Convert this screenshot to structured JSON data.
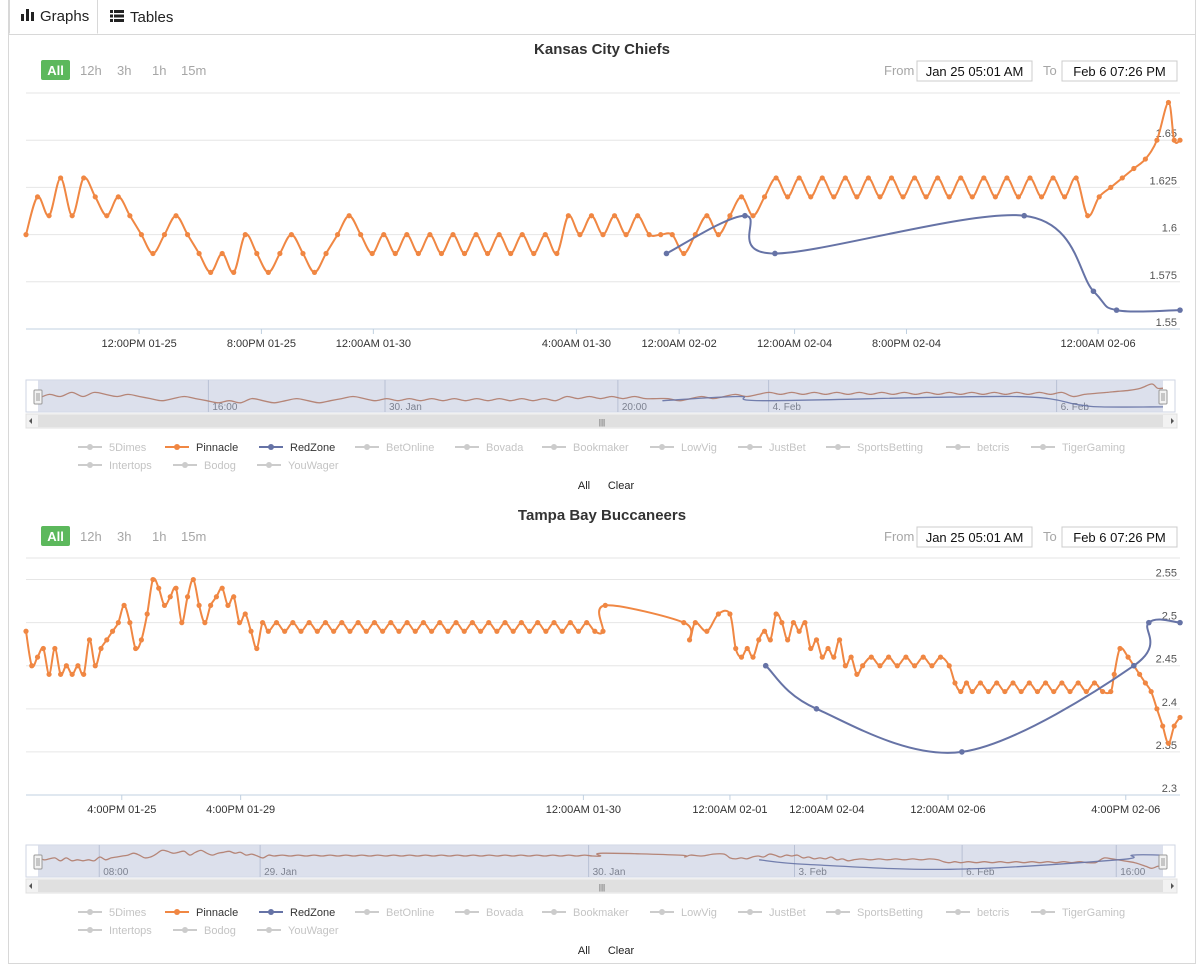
{
  "tabs": [
    {
      "label": "Graphs",
      "icon": "bar-chart-icon",
      "active": true
    },
    {
      "label": "Tables",
      "icon": "list-icon",
      "active": false
    }
  ],
  "colors": {
    "pinnacle": "#f08743",
    "redzone": "#6673a6",
    "inactive": "#cccccc",
    "accent": "#5cb85c",
    "navigator_bg": "#d6dbe9"
  },
  "range_buttons": [
    "All",
    "12h",
    "3h",
    "1h",
    "15m"
  ],
  "legend_items": [
    "5Dimes",
    "Pinnacle",
    "RedZone",
    "BetOnline",
    "Bovada",
    "Bookmaker",
    "LowVig",
    "JustBet",
    "SportsBetting",
    "betcris",
    "TigerGaming",
    "Intertops",
    "Bodog",
    "YouWager"
  ],
  "legend_active": [
    "Pinnacle",
    "RedZone"
  ],
  "legend_controls": {
    "all": "All",
    "clear": "Clear"
  },
  "chart_data": [
    {
      "type": "line",
      "title": "Kansas City Chiefs",
      "from_label": "From",
      "from_value": "Jan 25 05:01 AM",
      "to_label": "To",
      "to_value": "Feb 6 07:26 PM",
      "ylim": [
        1.55,
        1.675
      ],
      "yticks": [
        "1.55",
        "1.575",
        "1.6",
        "1.625",
        "1.65"
      ],
      "xlim": [
        0,
        100
      ],
      "xticks": [
        {
          "x": 9.8,
          "label": "12:00PM 01-25"
        },
        {
          "x": 20.4,
          "label": "8:00PM 01-25"
        },
        {
          "x": 30.1,
          "label": "12:00AM 01-30"
        },
        {
          "x": 47.7,
          "label": "4:00AM 01-30"
        },
        {
          "x": 56.6,
          "label": "12:00AM 02-02"
        },
        {
          "x": 66.6,
          "label": "12:00AM 02-04"
        },
        {
          "x": 76.3,
          "label": "8:00PM 02-04"
        },
        {
          "x": 92.9,
          "label": "12:00AM 02-06"
        }
      ],
      "navigator_labels": [
        {
          "x": 15.5,
          "label": "16:00"
        },
        {
          "x": 31.2,
          "label": "30. Jan"
        },
        {
          "x": 51.9,
          "label": "20:00"
        },
        {
          "x": 65.3,
          "label": "4. Feb"
        },
        {
          "x": 90.9,
          "label": "6. Feb"
        }
      ],
      "series": [
        {
          "name": "Pinnacle",
          "points": [
            [
              0,
              1.6
            ],
            [
              1,
              1.62
            ],
            [
              2,
              1.61
            ],
            [
              3,
              1.63
            ],
            [
              4,
              1.61
            ],
            [
              5,
              1.63
            ],
            [
              6,
              1.62
            ],
            [
              7,
              1.61
            ],
            [
              8,
              1.62
            ],
            [
              9,
              1.61
            ],
            [
              10,
              1.6
            ],
            [
              11,
              1.59
            ],
            [
              12,
              1.6
            ],
            [
              13,
              1.61
            ],
            [
              14,
              1.6
            ],
            [
              15,
              1.59
            ],
            [
              16,
              1.58
            ],
            [
              17,
              1.59
            ],
            [
              18,
              1.58
            ],
            [
              19,
              1.6
            ],
            [
              20,
              1.59
            ],
            [
              21,
              1.58
            ],
            [
              22,
              1.59
            ],
            [
              23,
              1.6
            ],
            [
              24,
              1.59
            ],
            [
              25,
              1.58
            ],
            [
              26,
              1.59
            ],
            [
              27,
              1.6
            ],
            [
              28,
              1.61
            ],
            [
              29,
              1.6
            ],
            [
              30,
              1.59
            ],
            [
              31,
              1.6
            ],
            [
              32,
              1.59
            ],
            [
              33,
              1.6
            ],
            [
              34,
              1.59
            ],
            [
              35,
              1.6
            ],
            [
              36,
              1.59
            ],
            [
              37,
              1.6
            ],
            [
              38,
              1.59
            ],
            [
              39,
              1.6
            ],
            [
              40,
              1.59
            ],
            [
              41,
              1.6
            ],
            [
              42,
              1.59
            ],
            [
              43,
              1.6
            ],
            [
              44,
              1.59
            ],
            [
              45,
              1.6
            ],
            [
              46,
              1.59
            ],
            [
              47,
              1.61
            ],
            [
              48,
              1.6
            ],
            [
              49,
              1.61
            ],
            [
              50,
              1.6
            ],
            [
              51,
              1.61
            ],
            [
              52,
              1.6
            ],
            [
              53,
              1.61
            ],
            [
              54,
              1.6
            ],
            [
              55,
              1.6
            ],
            [
              56,
              1.6
            ],
            [
              57,
              1.59
            ],
            [
              58,
              1.6
            ],
            [
              59,
              1.61
            ],
            [
              60,
              1.6
            ],
            [
              61,
              1.61
            ],
            [
              62,
              1.62
            ],
            [
              63,
              1.61
            ],
            [
              64,
              1.62
            ],
            [
              65,
              1.63
            ],
            [
              66,
              1.62
            ],
            [
              67,
              1.63
            ],
            [
              68,
              1.62
            ],
            [
              69,
              1.63
            ],
            [
              70,
              1.62
            ],
            [
              71,
              1.63
            ],
            [
              72,
              1.62
            ],
            [
              73,
              1.63
            ],
            [
              74,
              1.62
            ],
            [
              75,
              1.63
            ],
            [
              76,
              1.62
            ],
            [
              77,
              1.63
            ],
            [
              78,
              1.62
            ],
            [
              79,
              1.63
            ],
            [
              80,
              1.62
            ],
            [
              81,
              1.63
            ],
            [
              82,
              1.62
            ],
            [
              83,
              1.63
            ],
            [
              84,
              1.62
            ],
            [
              85,
              1.63
            ],
            [
              86,
              1.62
            ],
            [
              87,
              1.63
            ],
            [
              88,
              1.62
            ],
            [
              89,
              1.63
            ],
            [
              90,
              1.62
            ],
            [
              91,
              1.63
            ],
            [
              92,
              1.61
            ],
            [
              93,
              1.62
            ],
            [
              94,
              1.625
            ],
            [
              95,
              1.63
            ],
            [
              96,
              1.635
            ],
            [
              97,
              1.64
            ],
            [
              98,
              1.65
            ],
            [
              99,
              1.67
            ],
            [
              99.5,
              1.65
            ],
            [
              100,
              1.65
            ]
          ]
        },
        {
          "name": "RedZone",
          "points": [
            [
              55.5,
              1.59
            ],
            [
              62.3,
              1.61
            ],
            [
              64.9,
              1.59
            ],
            [
              86.5,
              1.61
            ],
            [
              92.5,
              1.57
            ],
            [
              94.5,
              1.56
            ],
            [
              100,
              1.56
            ]
          ]
        }
      ]
    },
    {
      "type": "line",
      "title": "Tampa Bay Buccaneers",
      "from_label": "From",
      "from_value": "Jan 25 05:01 AM",
      "to_label": "To",
      "to_value": "Feb 6 07:26 PM",
      "ylim": [
        2.3,
        2.575
      ],
      "yticks": [
        "2.3",
        "2.35",
        "2.4",
        "2.45",
        "2.5",
        "2.55"
      ],
      "xlim": [
        0,
        100
      ],
      "xticks": [
        {
          "x": 8.3,
          "label": "4:00PM 01-25"
        },
        {
          "x": 18.6,
          "label": "4:00PM 01-29"
        },
        {
          "x": 48.3,
          "label": "12:00AM 01-30"
        },
        {
          "x": 61.0,
          "label": "12:00AM 02-01"
        },
        {
          "x": 69.4,
          "label": "12:00AM 02-04"
        },
        {
          "x": 79.9,
          "label": "12:00AM 02-06"
        },
        {
          "x": 95.3,
          "label": "4:00PM 02-06"
        }
      ],
      "navigator_labels": [
        {
          "x": 5.8,
          "label": "08:00"
        },
        {
          "x": 20.1,
          "label": "29. Jan"
        },
        {
          "x": 49.3,
          "label": "30. Jan"
        },
        {
          "x": 67.6,
          "label": "3. Feb"
        },
        {
          "x": 82.5,
          "label": "6. Feb"
        },
        {
          "x": 96.2,
          "label": "16:00"
        }
      ],
      "series": [
        {
          "name": "Pinnacle",
          "points": [
            [
              0,
              2.49
            ],
            [
              0.5,
              2.45
            ],
            [
              1,
              2.46
            ],
            [
              1.5,
              2.47
            ],
            [
              2,
              2.44
            ],
            [
              2.5,
              2.47
            ],
            [
              3,
              2.44
            ],
            [
              3.5,
              2.45
            ],
            [
              4,
              2.44
            ],
            [
              4.5,
              2.45
            ],
            [
              5,
              2.44
            ],
            [
              5.5,
              2.48
            ],
            [
              6,
              2.45
            ],
            [
              6.5,
              2.47
            ],
            [
              7,
              2.48
            ],
            [
              7.5,
              2.49
            ],
            [
              8,
              2.5
            ],
            [
              8.5,
              2.52
            ],
            [
              9,
              2.5
            ],
            [
              9.5,
              2.47
            ],
            [
              10,
              2.48
            ],
            [
              10.5,
              2.51
            ],
            [
              11,
              2.55
            ],
            [
              11.5,
              2.54
            ],
            [
              12,
              2.52
            ],
            [
              12.5,
              2.53
            ],
            [
              13,
              2.54
            ],
            [
              13.5,
              2.5
            ],
            [
              14,
              2.53
            ],
            [
              14.5,
              2.55
            ],
            [
              15,
              2.52
            ],
            [
              15.5,
              2.5
            ],
            [
              16,
              2.52
            ],
            [
              16.5,
              2.53
            ],
            [
              17,
              2.54
            ],
            [
              17.5,
              2.52
            ],
            [
              18,
              2.53
            ],
            [
              18.5,
              2.5
            ],
            [
              19,
              2.51
            ],
            [
              19.5,
              2.49
            ],
            [
              20,
              2.47
            ],
            [
              20.5,
              2.5
            ],
            [
              21,
              2.49
            ],
            [
              50,
              2.49
            ],
            [
              50.2,
              2.52
            ],
            [
              57,
              2.5
            ],
            [
              57.5,
              2.48
            ],
            [
              58,
              2.5
            ],
            [
              59,
              2.49
            ],
            [
              60,
              2.51
            ],
            [
              61,
              2.51
            ],
            [
              61.5,
              2.47
            ],
            [
              62,
              2.46
            ],
            [
              62.5,
              2.47
            ],
            [
              63,
              2.46
            ],
            [
              63.5,
              2.48
            ],
            [
              64,
              2.49
            ],
            [
              64.5,
              2.48
            ],
            [
              65,
              2.51
            ],
            [
              65.5,
              2.5
            ],
            [
              66,
              2.48
            ],
            [
              66.5,
              2.5
            ],
            [
              67,
              2.49
            ],
            [
              67.5,
              2.5
            ],
            [
              68,
              2.47
            ],
            [
              68.5,
              2.48
            ],
            [
              69,
              2.46
            ],
            [
              69.5,
              2.47
            ],
            [
              70,
              2.46
            ],
            [
              70.5,
              2.48
            ],
            [
              71,
              2.45
            ],
            [
              71.5,
              2.46
            ],
            [
              72,
              2.44
            ],
            [
              72.5,
              2.45
            ],
            [
              80,
              2.45
            ],
            [
              80.5,
              2.43
            ],
            [
              81,
              2.42
            ],
            [
              81.5,
              2.43
            ],
            [
              82,
              2.42
            ],
            [
              94,
              2.42
            ],
            [
              94.3,
              2.44
            ],
            [
              94.8,
              2.47
            ],
            [
              95.5,
              2.46
            ],
            [
              96,
              2.45
            ],
            [
              96.5,
              2.44
            ],
            [
              97,
              2.43
            ],
            [
              97.5,
              2.42
            ],
            [
              98,
              2.4
            ],
            [
              98.5,
              2.38
            ],
            [
              99,
              2.36
            ],
            [
              99.5,
              2.38
            ],
            [
              100,
              2.39
            ]
          ]
        },
        {
          "name": "RedZone",
          "points": [
            [
              64.1,
              2.45
            ],
            [
              68.5,
              2.4
            ],
            [
              81.1,
              2.35
            ],
            [
              96.0,
              2.45
            ],
            [
              97.3,
              2.5
            ],
            [
              100,
              2.5
            ]
          ]
        }
      ]
    }
  ]
}
